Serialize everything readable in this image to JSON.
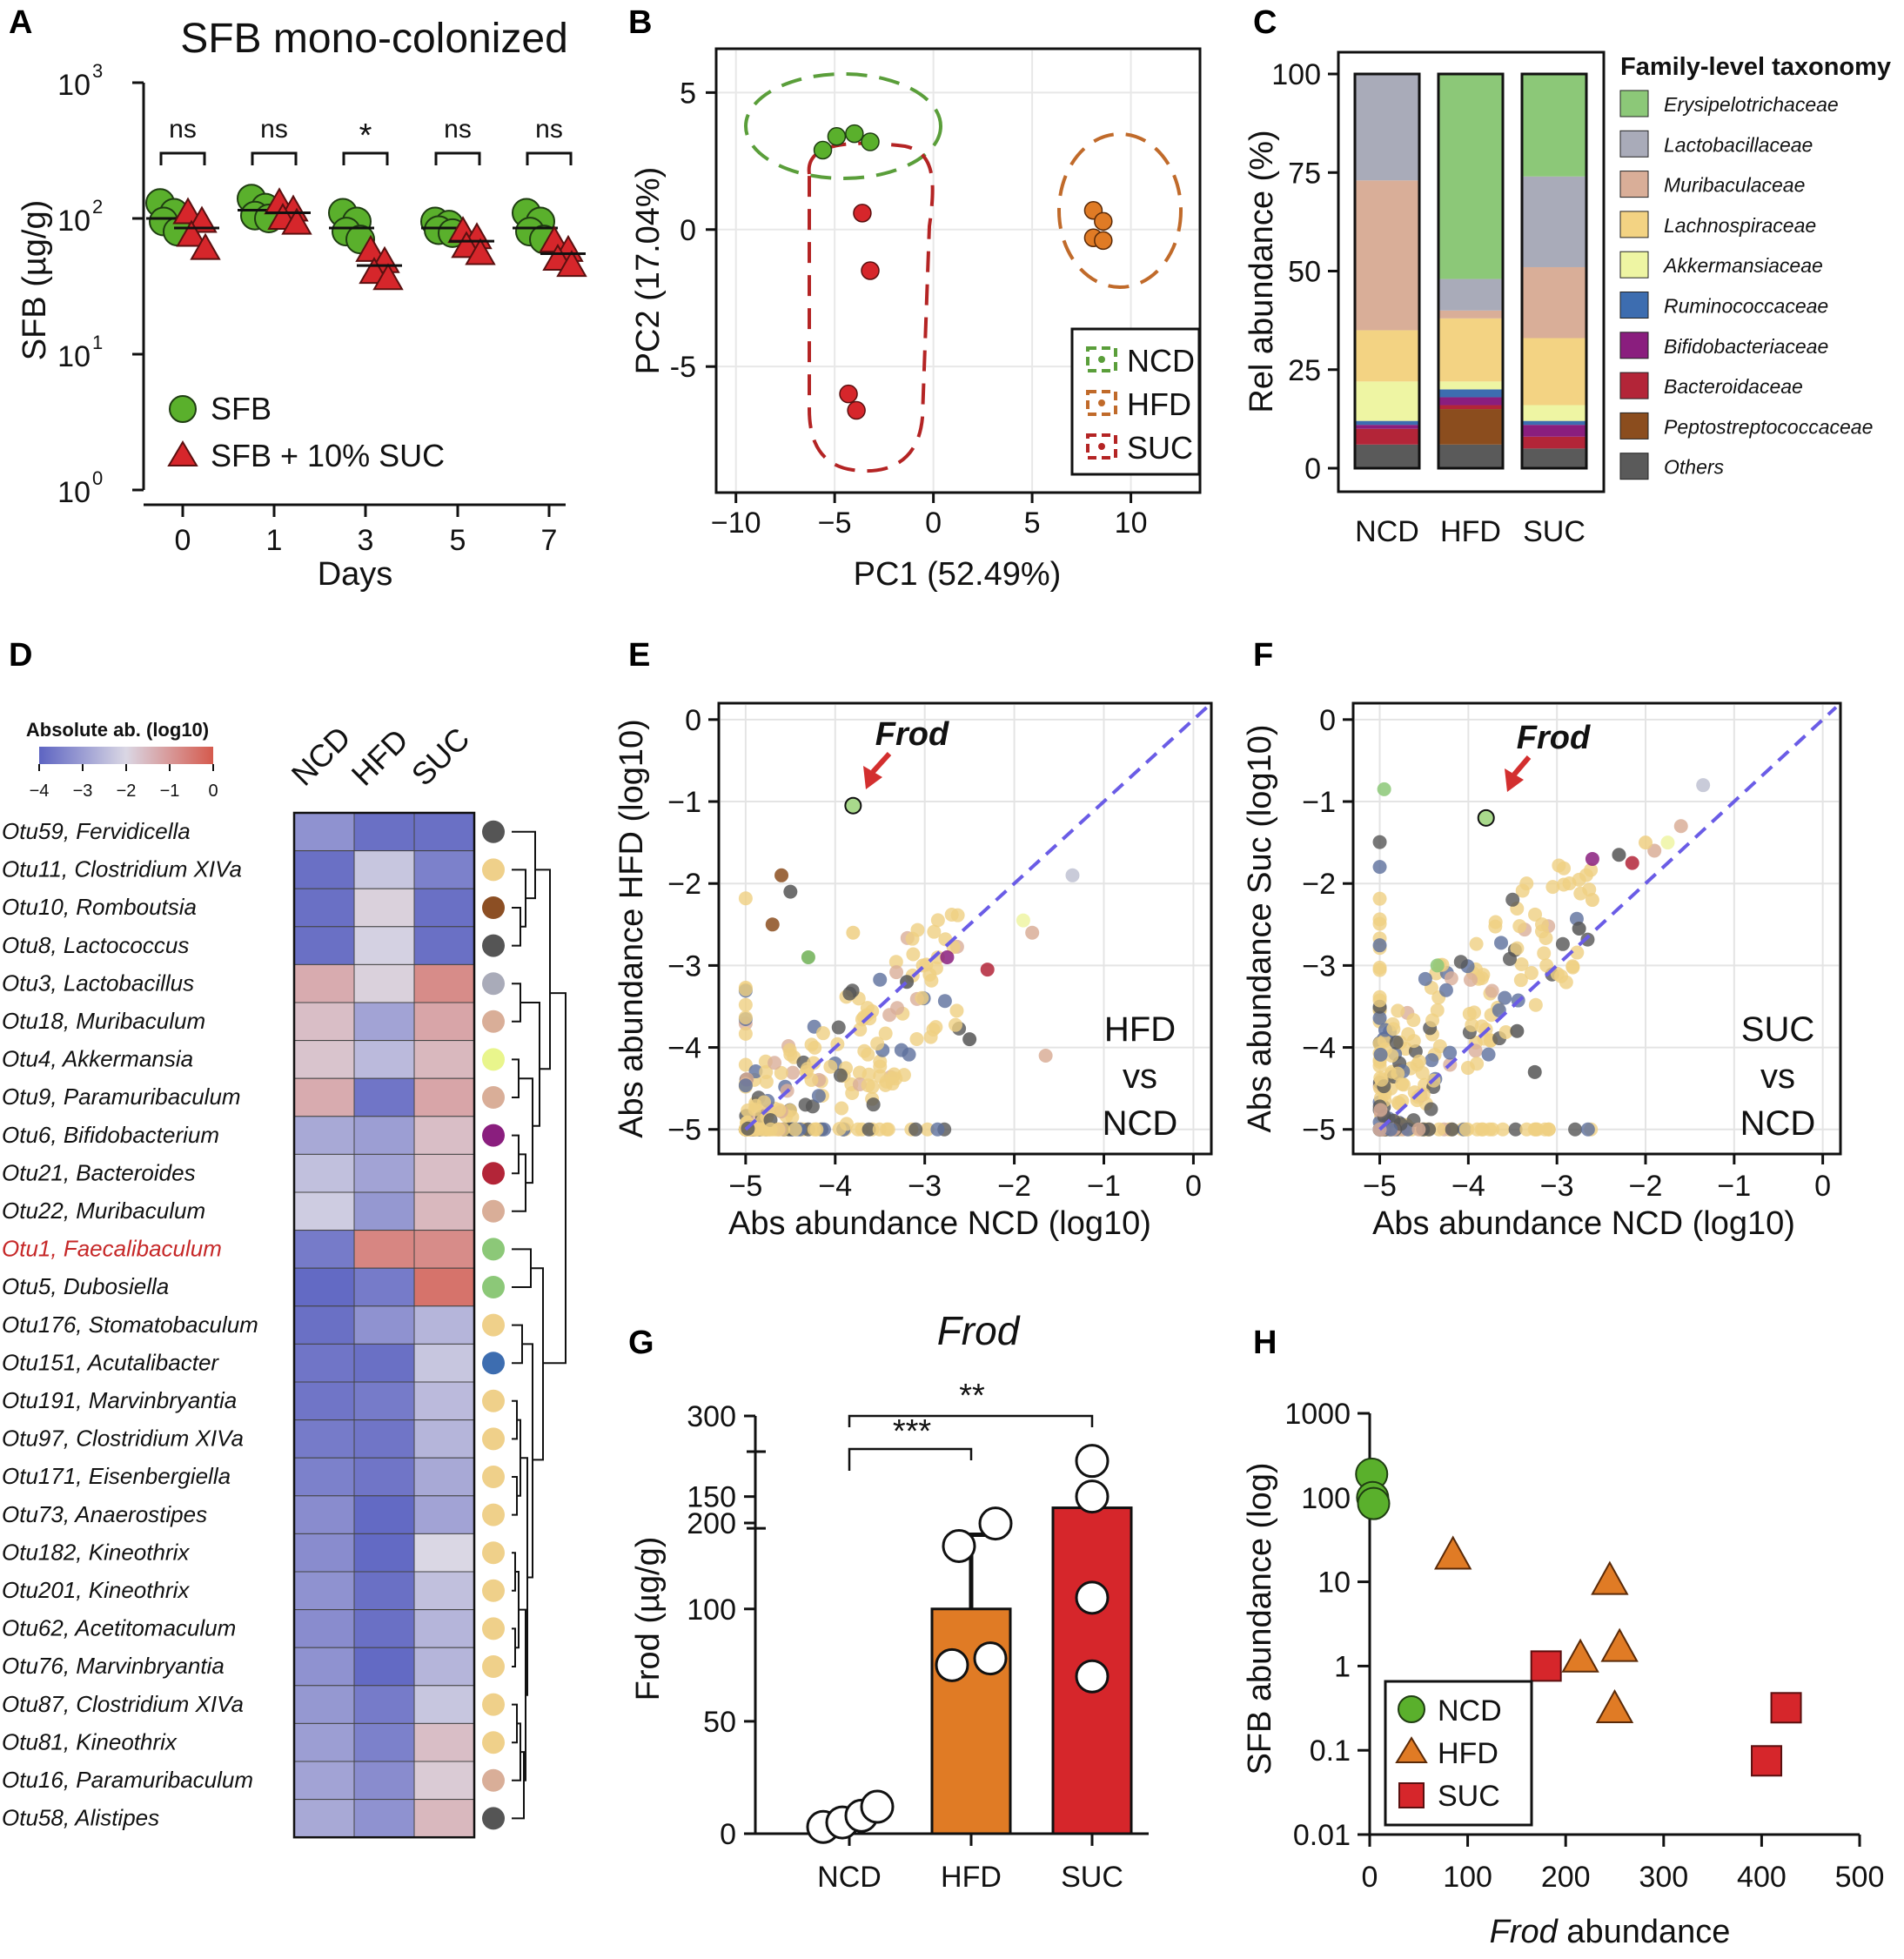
{
  "colors": {
    "ncd": "#5ab02c",
    "hfd": "#e07b25",
    "suc": "#d6262b",
    "pca_ncd": "#5a9e3a",
    "pca_hfd": "#c06a2a",
    "pca_suc": "#b42424",
    "diag": "#6a5ce6",
    "arrow": "#d32f2f"
  },
  "panels": {
    "a": {
      "letter": "A",
      "title": "SFB mono-colonized",
      "ylabel": "SFB (µg/g)",
      "xlabel": "Days",
      "yticks": [
        "10",
        "10",
        "10",
        "10"
      ],
      "yexp": [
        "0",
        "1",
        "2",
        "3"
      ],
      "legend": [
        "SFB",
        "SFB + 10% SUC"
      ],
      "sig": [
        "ns",
        "ns",
        "*",
        "ns",
        "ns"
      ]
    },
    "b": {
      "letter": "B",
      "xlabel": "PC1 (52.49%)",
      "ylabel": "PC2 (17.04%)",
      "legend": [
        "NCD",
        "HFD",
        "SUC"
      ]
    },
    "c": {
      "letter": "C",
      "ylabel": "Rel abundance (%)",
      "legend_title": "Family-level taxonomy"
    },
    "d": {
      "letter": "D",
      "scale_title": "Absolute ab. (log10)",
      "scale_ticks": [
        "−4",
        "−3",
        "−2",
        "−1",
        "0"
      ],
      "columns": [
        "NCD",
        "HFD",
        "SUC"
      ]
    },
    "e": {
      "letter": "E",
      "xlabel": "Abs abundance NCD (log10)",
      "ylabel": "Abs abundance HFD (log10)",
      "annot": "Frod",
      "label": [
        "HFD",
        "vs",
        "NCD"
      ]
    },
    "f": {
      "letter": "F",
      "xlabel": "Abs abundance NCD (log10)",
      "ylabel": "Abs abundance Suc (log10)",
      "annot": "Frod",
      "label": [
        "SUC",
        "vs",
        "NCD"
      ]
    },
    "g": {
      "letter": "G",
      "title": "Frod",
      "ylabel": "Frod (µg/g)",
      "sig": [
        "***",
        "**"
      ]
    },
    "h": {
      "letter": "H",
      "xlabel_italic": "Frod",
      "xlabel_rest": " abundance",
      "ylabel": "SFB abundance (log)",
      "legend": [
        "NCD",
        "HFD",
        "SUC"
      ]
    }
  },
  "chart_data": [
    {
      "id": "A",
      "type": "scatter",
      "title": "SFB mono-colonized",
      "xlabel": "Days",
      "ylabel": "SFB (µg/g)",
      "yscale": "log",
      "ylim": [
        1,
        1000
      ],
      "categories": [
        "0",
        "1",
        "3",
        "5",
        "7"
      ],
      "series": [
        {
          "name": "SFB",
          "marker": "circle",
          "means": [
            100,
            115,
            85,
            85,
            85
          ],
          "points": [
            [
              130,
              110,
              95,
              80
            ],
            [
              140,
              120,
              105,
              100
            ],
            [
              110,
              95,
              80,
              70
            ],
            [
              95,
              90,
              82,
              78
            ],
            [
              110,
              95,
              80,
              70
            ]
          ]
        },
        {
          "name": "SFB + 10% SUC",
          "marker": "triangle",
          "means": [
            85,
            110,
            45,
            68,
            55
          ],
          "points": [
            [
              110,
              95,
              75,
              60
            ],
            [
              130,
              115,
              100,
              92
            ],
            [
              58,
              48,
              40,
              36
            ],
            [
              80,
              72,
              62,
              55
            ],
            [
              68,
              58,
              50,
              45
            ]
          ]
        }
      ],
      "significance": [
        "ns",
        "ns",
        "*",
        "ns",
        "ns"
      ]
    },
    {
      "id": "B",
      "type": "scatter",
      "xlabel": "PC1 (52.49%)",
      "ylabel": "PC2 (17.04%)",
      "xlim": [
        -11,
        13.5
      ],
      "ylim": [
        -9.6,
        6.6
      ],
      "xticks": [
        -10,
        -5,
        0,
        5,
        10
      ],
      "yticks": [
        -5,
        0,
        5
      ],
      "grid": true,
      "legend_position": "bottom-right",
      "series": [
        {
          "name": "NCD",
          "points": [
            [
              -5.6,
              2.9
            ],
            [
              -4.9,
              3.4
            ],
            [
              -4.0,
              3.5
            ],
            [
              -3.2,
              3.2
            ]
          ]
        },
        {
          "name": "HFD",
          "points": [
            [
              8.1,
              0.7
            ],
            [
              8.6,
              0.3
            ],
            [
              8.1,
              -0.3
            ],
            [
              8.6,
              -0.4
            ]
          ]
        },
        {
          "name": "SUC",
          "points": [
            [
              -3.6,
              0.6
            ],
            [
              -3.2,
              -1.5
            ],
            [
              -4.3,
              -6.0
            ],
            [
              -3.9,
              -6.6
            ]
          ]
        }
      ]
    },
    {
      "id": "C",
      "type": "bar",
      "stacked": true,
      "ylabel": "Rel abundance (%)",
      "ylim": [
        0,
        100
      ],
      "yticks": [
        0,
        25,
        50,
        75,
        100
      ],
      "categories": [
        "NCD",
        "HFD",
        "SUC"
      ],
      "legend_title": "Family-level taxonomy",
      "series": [
        {
          "name": "Others",
          "color": "#5a5a5a",
          "values": [
            6,
            6,
            5
          ]
        },
        {
          "name": "Peptostreptococcaceae",
          "color": "#8b4d1e",
          "values": [
            0,
            9,
            0
          ]
        },
        {
          "name": "Bacteroidaceae",
          "color": "#b32538",
          "values": [
            4,
            1,
            3
          ]
        },
        {
          "name": "Bifidobacteriaceae",
          "color": "#8a1e7e",
          "values": [
            1,
            2,
            3
          ]
        },
        {
          "name": "Ruminococcaceae",
          "color": "#3d6db0",
          "values": [
            1,
            2,
            1
          ]
        },
        {
          "name": "Akkermansiaceae",
          "color": "#eef5a3",
          "values": [
            10,
            2,
            4
          ]
        },
        {
          "name": "Lachnospiraceae",
          "color": "#f3d383",
          "values": [
            13,
            16,
            17
          ]
        },
        {
          "name": "Muribaculaceae",
          "color": "#d9ae98",
          "values": [
            38,
            2,
            18
          ]
        },
        {
          "name": "Lactobacillaceae",
          "color": "#a9abb9",
          "values": [
            27,
            8,
            23
          ]
        },
        {
          "name": "Erysipelotrichaceae",
          "color": "#8cc878",
          "values": [
            0,
            52,
            26
          ]
        }
      ]
    },
    {
      "id": "D",
      "type": "heatmap",
      "scale_title": "Absolute ab. (log10)",
      "range": [
        -4,
        0
      ],
      "columns": [
        "NCD",
        "HFD",
        "SUC"
      ],
      "rows": [
        {
          "label": "Otu59, Fervidicella",
          "values": [
            -3.2,
            -3.8,
            -3.8
          ],
          "dot": "#555555"
        },
        {
          "label": "Otu11, Clostridium XIVa",
          "values": [
            -3.8,
            -2.3,
            -3.5
          ],
          "dot": "#efd08a"
        },
        {
          "label": "Otu10, Romboutsia",
          "values": [
            -3.8,
            -1.9,
            -3.8
          ],
          "dot": "#8c4f24"
        },
        {
          "label": "Otu8, Lactococcus",
          "values": [
            -3.8,
            -2.1,
            -3.8
          ],
          "dot": "#555555"
        },
        {
          "label": "Otu3, Lactobacillus",
          "values": [
            -1.3,
            -1.9,
            -0.8
          ],
          "dot": "#a9abb9"
        },
        {
          "label": "Otu18, Muribaculum",
          "values": [
            -1.6,
            -2.9,
            -1.2
          ],
          "dot": "#d9ae98"
        },
        {
          "label": "Otu4, Akkermansia",
          "values": [
            -1.7,
            -2.5,
            -1.5
          ],
          "dot": "#e9f58c"
        },
        {
          "label": "Otu9, Paramuribaculum",
          "values": [
            -1.3,
            -3.7,
            -1.2
          ],
          "dot": "#d9ae98"
        },
        {
          "label": "Otu6, Bifidobacterium",
          "values": [
            -2.8,
            -3.0,
            -1.6
          ],
          "dot": "#8a1e7e"
        },
        {
          "label": "Otu21, Bacteroides",
          "values": [
            -2.4,
            -2.9,
            -1.6
          ],
          "dot": "#b32538"
        },
        {
          "label": "Otu22, Muribaculum",
          "values": [
            -2.2,
            -3.1,
            -1.5
          ],
          "dot": "#d9ae98"
        },
        {
          "label": "Otu1, Faecalibaculum",
          "values": [
            -3.6,
            -0.7,
            -0.8
          ],
          "dot": "#8cc878",
          "highlight": true
        },
        {
          "label": "Otu5, Dubosiella",
          "values": [
            -3.9,
            -3.6,
            -0.4
          ],
          "dot": "#8cc878"
        },
        {
          "label": "Otu176, Stomatobaculum",
          "values": [
            -3.8,
            -3.2,
            -2.6
          ],
          "dot": "#efd08a"
        },
        {
          "label": "Otu151, Acutalibacter",
          "values": [
            -3.7,
            -3.8,
            -2.3
          ],
          "dot": "#3d6db0"
        },
        {
          "label": "Otu191, Marvinbryantia",
          "values": [
            -3.7,
            -3.6,
            -2.5
          ],
          "dot": "#efd08a"
        },
        {
          "label": "Otu97, Clostridium XIVa",
          "values": [
            -3.6,
            -3.7,
            -2.6
          ],
          "dot": "#efd08a"
        },
        {
          "label": "Otu171, Eisenbergiella",
          "values": [
            -3.5,
            -3.7,
            -2.8
          ],
          "dot": "#efd08a"
        },
        {
          "label": "Otu73, Anaerostipes",
          "values": [
            -3.3,
            -3.9,
            -2.9
          ],
          "dot": "#efd08a"
        },
        {
          "label": "Otu182, Kineothrix",
          "values": [
            -3.3,
            -3.9,
            -2.0
          ],
          "dot": "#efd08a"
        },
        {
          "label": "Otu201, Kineothrix",
          "values": [
            -3.2,
            -3.8,
            -2.4
          ],
          "dot": "#efd08a"
        },
        {
          "label": "Otu62, Acetitomaculum",
          "values": [
            -3.3,
            -3.8,
            -2.6
          ],
          "dot": "#efd08a"
        },
        {
          "label": "Otu76, Marvinbryantia",
          "values": [
            -3.2,
            -3.9,
            -2.6
          ],
          "dot": "#efd08a"
        },
        {
          "label": "Otu87, Clostridium XIVa",
          "values": [
            -3.1,
            -3.6,
            -2.3
          ],
          "dot": "#efd08a"
        },
        {
          "label": "Otu81, Kineothrix",
          "values": [
            -3.0,
            -3.5,
            -1.6
          ],
          "dot": "#efd08a"
        },
        {
          "label": "Otu16, Paramuribaculum",
          "values": [
            -2.9,
            -3.3,
            -1.8
          ],
          "dot": "#d9ae98"
        },
        {
          "label": "Otu58, Alistipes",
          "values": [
            -2.8,
            -3.2,
            -1.5
          ],
          "dot": "#555555"
        }
      ]
    },
    {
      "id": "E",
      "type": "scatter",
      "xlabel": "Abs abundance NCD (log10)",
      "ylabel": "Abs abundance HFD (log10)",
      "xlim": [
        -5.3,
        0.2
      ],
      "ylim": [
        -5.3,
        0.2
      ],
      "xticks": [
        -5,
        -4,
        -3,
        -2,
        -1,
        0
      ],
      "yticks": [
        -5,
        -4,
        -3,
        -2,
        -1,
        0
      ],
      "grid": true,
      "annotation": {
        "text": "Frod",
        "point": [
          -3.8,
          -1.05
        ]
      }
    },
    {
      "id": "F",
      "type": "scatter",
      "xlabel": "Abs abundance NCD (log10)",
      "ylabel": "Abs abundance Suc (log10)",
      "xlim": [
        -5.3,
        0.2
      ],
      "ylim": [
        -5.3,
        0.2
      ],
      "xticks": [
        -5,
        -4,
        -3,
        -2,
        -1,
        0
      ],
      "yticks": [
        -5,
        -4,
        -3,
        -2,
        -1,
        0
      ],
      "grid": true,
      "annotation": {
        "text": "Frod",
        "point": [
          -3.8,
          -1.2
        ]
      }
    },
    {
      "id": "G",
      "type": "bar",
      "title": "Frod",
      "ylabel": "Frod (µg/g)",
      "categories": [
        "NCD",
        "HFD",
        "SUC"
      ],
      "values": [
        5,
        100,
        145
      ],
      "sd": [
        0,
        33,
        83
      ],
      "points": [
        [
          3,
          8,
          5,
          12
        ],
        [
          75,
          78,
          128,
          138
        ],
        [
          70,
          105,
          150,
          258
        ]
      ],
      "yticks": [
        0,
        50,
        100,
        150,
        200,
        300
      ],
      "axis_break": [
        170,
        195
      ],
      "significance": [
        {
          "pair": [
            "NCD",
            "HFD"
          ],
          "label": "***"
        },
        {
          "pair": [
            "NCD",
            "SUC"
          ],
          "label": "**"
        }
      ]
    },
    {
      "id": "H",
      "type": "scatter",
      "xlabel": "Frod abundance",
      "ylabel": "SFB abundance (log)",
      "yscale": "log",
      "xlim": [
        0,
        500
      ],
      "ylim": [
        0.01,
        1000
      ],
      "xticks": [
        0,
        100,
        200,
        300,
        400,
        500
      ],
      "yticks": [
        "0.01",
        "0.1",
        "1",
        "10",
        "100",
        "1000"
      ],
      "legend_position": "bottom-left",
      "series": [
        {
          "name": "NCD",
          "marker": "circle",
          "points": [
            [
              2,
              190
            ],
            [
              3,
              100
            ],
            [
              4,
              85
            ]
          ]
        },
        {
          "name": "HFD",
          "marker": "triangle",
          "points": [
            [
              85,
              20
            ],
            [
              215,
              1.2
            ],
            [
              245,
              10
            ],
            [
              250,
              0.3
            ],
            [
              255,
              1.6
            ]
          ]
        },
        {
          "name": "SUC",
          "marker": "square",
          "points": [
            [
              180,
              1.0
            ],
            [
              405,
              0.075
            ],
            [
              425,
              0.32
            ]
          ]
        }
      ]
    }
  ]
}
